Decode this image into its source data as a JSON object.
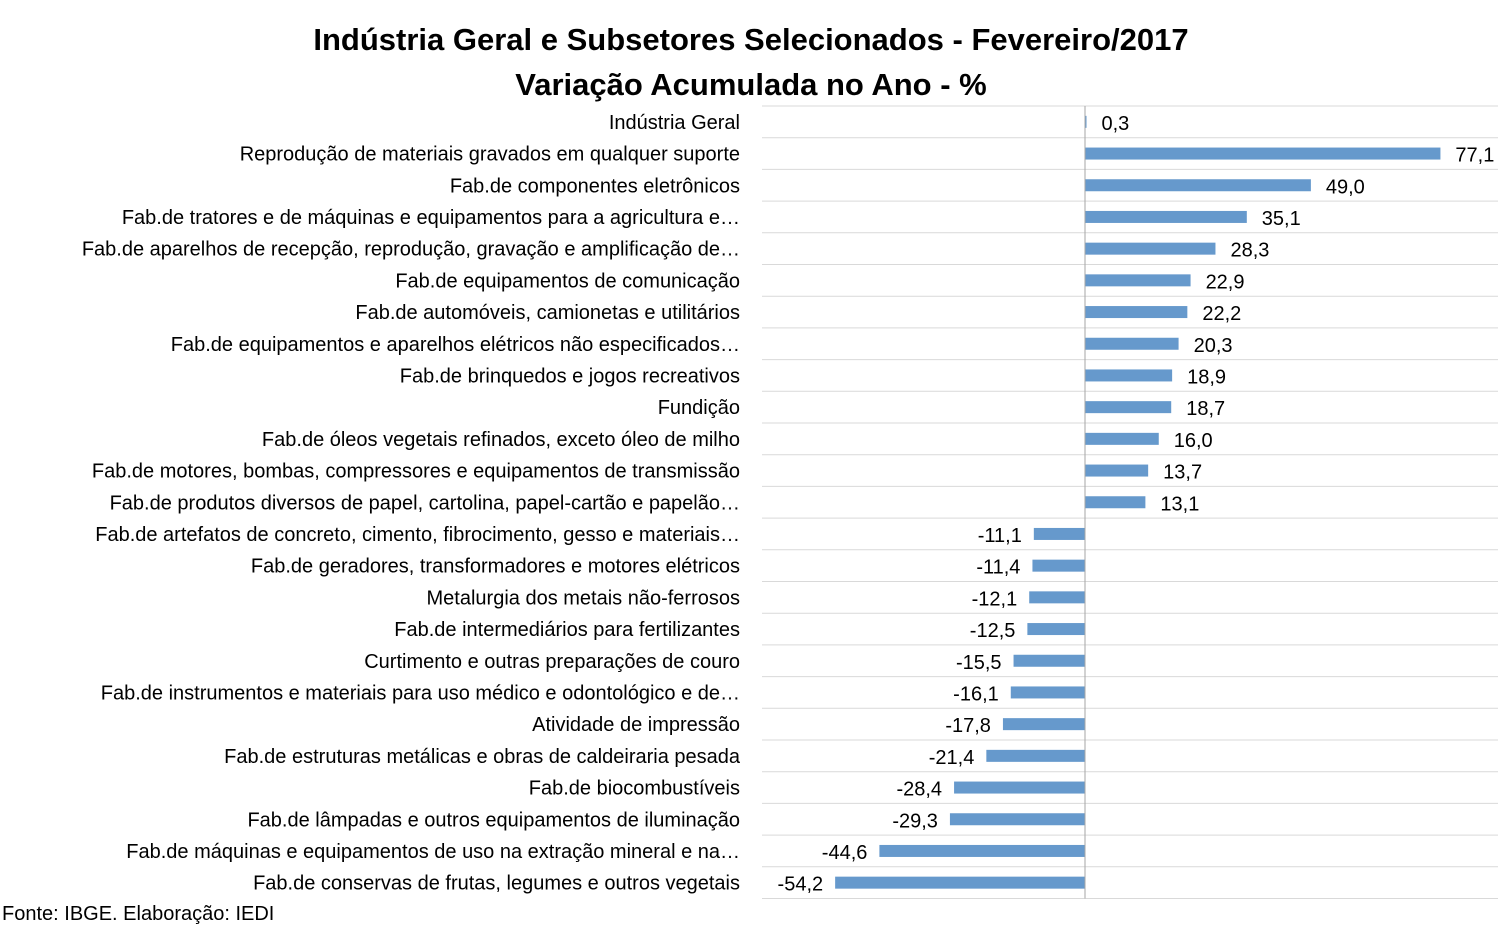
{
  "chart_data": {
    "type": "bar",
    "orientation": "horizontal",
    "title": "Indústria Geral e Subsetores Selecionados - Fevereiro/2017",
    "subtitle": "Variação Acumulada no Ano - %",
    "categories": [
      "Indústria Geral",
      "Reprodução de materiais gravados em qualquer suporte",
      "Fab.de componentes eletrônicos",
      "Fab.de tratores e de máquinas e equipamentos para a agricultura e…",
      "Fab.de aparelhos de recepção, reprodução, gravação e amplificação de…",
      "Fab.de equipamentos de comunicação",
      "Fab.de automóveis, camionetas e utilitários",
      "Fab.de equipamentos e aparelhos elétricos não especificados…",
      "Fab.de brinquedos e jogos recreativos",
      "Fundição",
      "Fab.de óleos vegetais refinados, exceto óleo de milho",
      "Fab.de motores, bombas, compressores e equipamentos de transmissão",
      "Fab.de produtos diversos de papel, cartolina, papel-cartão e papelão…",
      "Fab.de artefatos de concreto, cimento, fibrocimento, gesso e materiais…",
      "Fab.de geradores, transformadores e motores elétricos",
      "Metalurgia dos metais não-ferrosos",
      "Fab.de intermediários para fertilizantes",
      "Curtimento e outras preparações de couro",
      "Fab.de instrumentos e materiais para uso médico e odontológico e de…",
      "Atividade de impressão",
      "Fab.de estruturas metálicas e obras de caldeiraria pesada",
      "Fab.de biocombustíveis",
      "Fab.de lâmpadas e outros equipamentos de iluminação",
      "Fab.de máquinas e equipamentos de uso na extração mineral e na…",
      "Fab.de conservas de frutas, legumes e outros vegetais"
    ],
    "values": [
      0.3,
      77.1,
      49.0,
      35.1,
      28.3,
      22.9,
      22.2,
      20.3,
      18.9,
      18.7,
      16.0,
      13.7,
      13.1,
      -11.1,
      -11.4,
      -12.1,
      -12.5,
      -15.5,
      -16.1,
      -17.8,
      -21.4,
      -28.4,
      -29.3,
      -44.6,
      -54.2
    ],
    "value_labels": [
      "0,3",
      "77,1",
      "49,0",
      "35,1",
      "28,3",
      "22,9",
      "22,2",
      "20,3",
      "18,9",
      "18,7",
      "16,0",
      "13,7",
      "13,1",
      "-11,1",
      "-11,4",
      "-12,1",
      "-12,5",
      "-15,5",
      "-16,1",
      "-17,8",
      "-21,4",
      "-28,4",
      "-29,3",
      "-44,6",
      "-54,2"
    ],
    "xlim": [
      -65,
      90
    ],
    "bar_color": "#6699cc",
    "grid": "horizontal-lines",
    "legend": "none"
  },
  "footer": {
    "source": "Fonte: IBGE. Elaboração: IEDI"
  }
}
